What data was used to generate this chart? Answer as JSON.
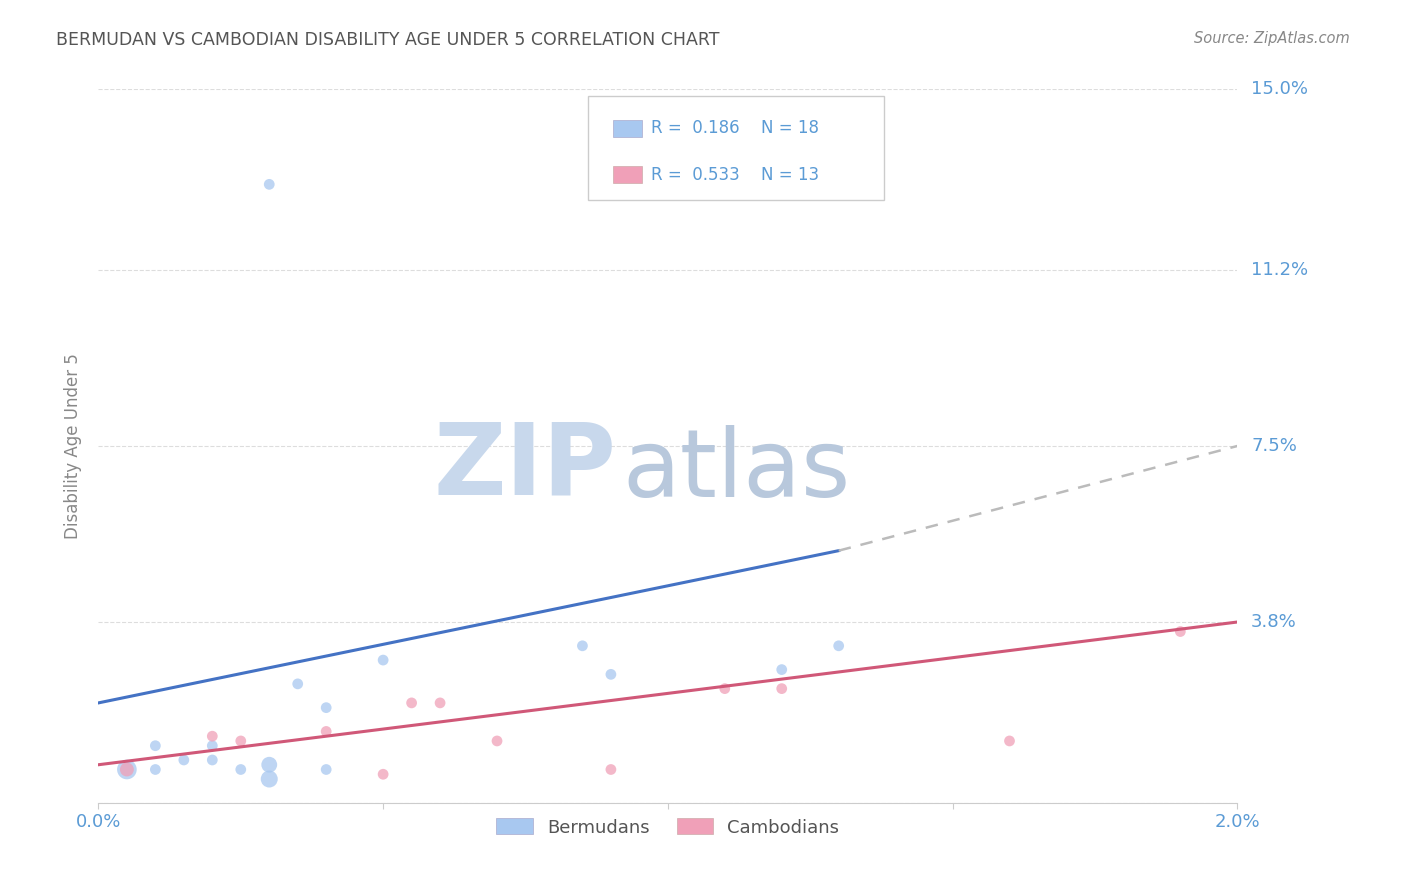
{
  "title": "BERMUDAN VS CAMBODIAN DISABILITY AGE UNDER 5 CORRELATION CHART",
  "source": "Source: ZipAtlas.com",
  "ylabel_label": "Disability Age Under 5",
  "legend_bermuda_r": "R =  0.186",
  "legend_bermuda_n": "N = 18",
  "legend_cambodia_r": "R =  0.533",
  "legend_cambodia_n": "N = 13",
  "xlim": [
    0.0,
    0.02
  ],
  "ylim": [
    0.0,
    0.15
  ],
  "yticks": [
    0.0,
    0.038,
    0.075,
    0.112,
    0.15
  ],
  "ytick_labels": [
    "",
    "3.8%",
    "7.5%",
    "11.2%",
    "15.0%"
  ],
  "xticks": [
    0.0,
    0.005,
    0.01,
    0.015,
    0.02
  ],
  "xtick_labels": [
    "0.0%",
    "",
    "",
    "",
    "2.0%"
  ],
  "bermuda_color": "#A8C8F0",
  "cambodia_color": "#F0A0B8",
  "line_bermuda_color": "#4472C4",
  "line_cambodia_color": "#D05878",
  "line_dashed_color": "#BBBBBB",
  "background_color": "#FFFFFF",
  "grid_color": "#DDDDDD",
  "right_tick_color": "#5B9BD5",
  "watermark_zip_color": "#C8D8EC",
  "watermark_atlas_color": "#B8C8DC",
  "bermuda_x": [
    0.0005,
    0.001,
    0.001,
    0.0015,
    0.002,
    0.002,
    0.0025,
    0.003,
    0.003,
    0.003,
    0.0035,
    0.004,
    0.004,
    0.005,
    0.0085,
    0.009,
    0.012,
    0.013
  ],
  "bermuda_y": [
    0.007,
    0.012,
    0.007,
    0.009,
    0.009,
    0.012,
    0.007,
    0.008,
    0.005,
    0.13,
    0.025,
    0.02,
    0.007,
    0.03,
    0.033,
    0.027,
    0.028,
    0.033
  ],
  "bermuda_sizes": [
    200,
    60,
    60,
    60,
    60,
    60,
    60,
    130,
    150,
    60,
    60,
    60,
    60,
    60,
    60,
    60,
    60,
    60
  ],
  "cambodia_x": [
    0.0005,
    0.002,
    0.0025,
    0.004,
    0.005,
    0.0055,
    0.006,
    0.007,
    0.009,
    0.011,
    0.012,
    0.016,
    0.019
  ],
  "cambodia_y": [
    0.007,
    0.014,
    0.013,
    0.015,
    0.006,
    0.021,
    0.021,
    0.013,
    0.007,
    0.024,
    0.024,
    0.013,
    0.036
  ],
  "cambodia_sizes": [
    100,
    60,
    60,
    60,
    60,
    60,
    60,
    60,
    60,
    60,
    60,
    60,
    60
  ],
  "bermuda_trendline_x": [
    0.0,
    0.013
  ],
  "bermuda_trendline_y": [
    0.021,
    0.053
  ],
  "cambodia_trendline_x": [
    0.0,
    0.02
  ],
  "cambodia_trendline_y": [
    0.008,
    0.038
  ],
  "dashed_line_x": [
    0.013,
    0.02
  ],
  "dashed_line_y": [
    0.053,
    0.075
  ]
}
